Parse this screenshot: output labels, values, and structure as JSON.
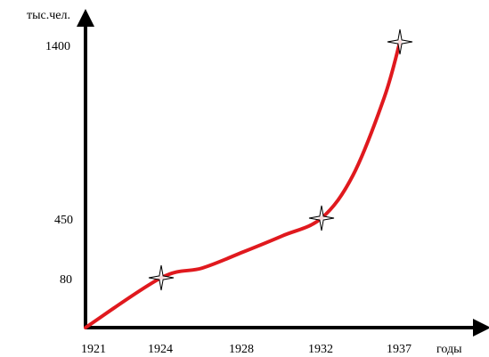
{
  "chart_data": {
    "type": "line",
    "title": "",
    "xlabel": "годы",
    "ylabel": "тыс.чел.",
    "x_ticks": [
      "1921",
      "1924",
      "1928",
      "1932",
      "1937"
    ],
    "y_ticks": [
      "80",
      "450",
      "1400"
    ],
    "grid": false,
    "series": [
      {
        "color": "#e0191e",
        "x": [
          1921,
          1924,
          1926,
          1928,
          1930,
          1932,
          1934,
          1936,
          1937
        ],
        "y": [
          0,
          80,
          140,
          240,
          340,
          450,
          680,
          1100,
          1400
        ]
      }
    ],
    "markers": [
      {
        "x": 1924,
        "y": 80
      },
      {
        "x": 1932,
        "y": 450
      },
      {
        "x": 1937,
        "y": 1400
      }
    ],
    "colors": {
      "axis": "#000000",
      "line": "#e0191e",
      "marker_stroke": "#000000",
      "marker_fill": "#ffffff"
    }
  }
}
